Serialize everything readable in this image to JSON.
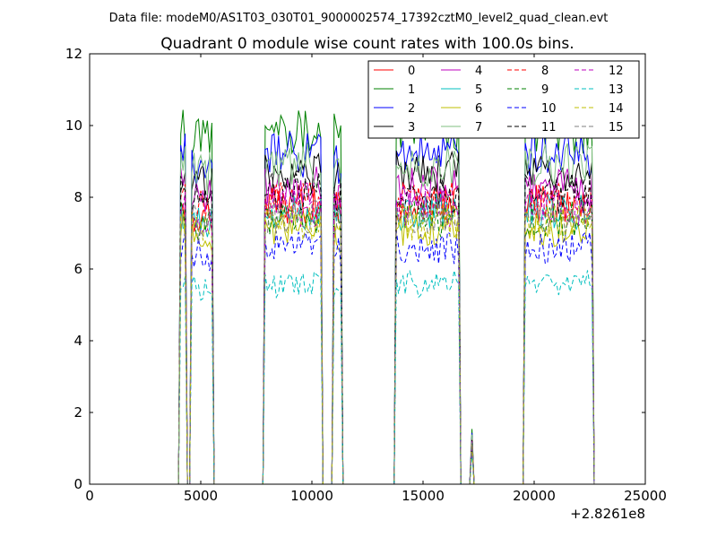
{
  "suptitle": "Data file: modeM0/AS1T03_030T01_9000002574_17392cztM0_level2_quad_clean.evt",
  "chart_data": {
    "type": "line",
    "title": "Quadrant 0 module wise count rates with 100.0s bins.",
    "xlabel": "",
    "ylabel": "",
    "xlim": [
      0,
      25000
    ],
    "ylim": [
      0,
      12
    ],
    "x_offset_label": "+2.8261e8",
    "x_ticks": [
      0,
      5000,
      10000,
      15000,
      20000,
      25000
    ],
    "y_ticks": [
      0,
      2,
      4,
      6,
      8,
      10,
      12
    ],
    "grid": false,
    "legend_location": "top-right",
    "legend_columns": 4,
    "active_segments": [
      [
        4100,
        4350
      ],
      [
        4550,
        5550
      ],
      [
        7850,
        10400
      ],
      [
        10950,
        11350
      ],
      [
        13750,
        16600
      ],
      [
        19550,
        22650
      ]
    ],
    "segment_scale": [
      1.0,
      0.97,
      1.0,
      0.98,
      1.0,
      1.0
    ],
    "series": [
      {
        "name": "0",
        "color": "#ff0000",
        "dash": "solid",
        "level": 7.8
      },
      {
        "name": "1",
        "color": "#008000",
        "dash": "solid",
        "level": 9.9
      },
      {
        "name": "2",
        "color": "#0000ff",
        "dash": "solid",
        "level": 9.2
      },
      {
        "name": "3",
        "color": "#000000",
        "dash": "solid",
        "level": 8.7
      },
      {
        "name": "4",
        "color": "#bf00bf",
        "dash": "solid",
        "level": 8.3
      },
      {
        "name": "5",
        "color": "#00bfbf",
        "dash": "solid",
        "level": 7.6
      },
      {
        "name": "6",
        "color": "#bfbf00",
        "dash": "solid",
        "level": 7.1
      },
      {
        "name": "7",
        "color": "#7fbf7f",
        "dash": "solid",
        "level": 8.9
      },
      {
        "name": "8",
        "color": "#ff0000",
        "dash": "dashed",
        "level": 7.9
      },
      {
        "name": "9",
        "color": "#008000",
        "dash": "dashed",
        "level": 7.4
      },
      {
        "name": "10",
        "color": "#0000ff",
        "dash": "dashed",
        "level": 6.6
      },
      {
        "name": "11",
        "color": "#000000",
        "dash": "dashed",
        "level": 8.1
      },
      {
        "name": "12",
        "color": "#bf00bf",
        "dash": "dashed",
        "level": 7.7
      },
      {
        "name": "13",
        "color": "#00bfbf",
        "dash": "dashed",
        "level": 5.6
      },
      {
        "name": "14",
        "color": "#bfbf00",
        "dash": "dashed",
        "level": 7.3
      },
      {
        "name": "15",
        "color": "#7f7f7f",
        "dash": "dashed",
        "level": 7.5
      }
    ]
  }
}
